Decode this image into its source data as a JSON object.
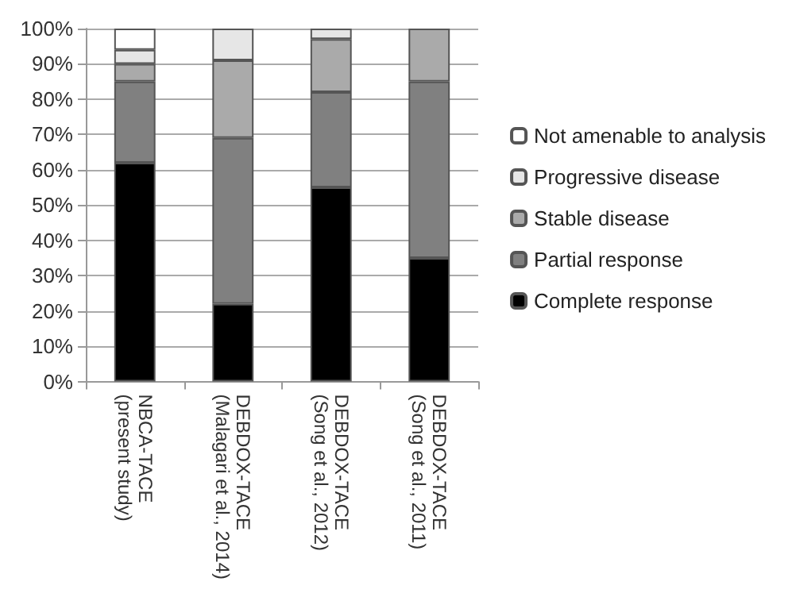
{
  "chart_data": {
    "type": "bar",
    "stacked": true,
    "categories": [
      "NBCA-TACE\n(present study)",
      "DEBDOX-TACE\n(Malagari et al., 2014)",
      "DEBDOX-TACE\n(Song et al., 2012)",
      "DEBDOX-TACE\n(Song et al., 2011)"
    ],
    "series": [
      {
        "name": "Complete response",
        "color": "#000000",
        "values": [
          62,
          22,
          55,
          35
        ]
      },
      {
        "name": "Partial response",
        "color": "#808080",
        "values": [
          23,
          47,
          27,
          50
        ]
      },
      {
        "name": "Stable disease",
        "color": "#aaaaaa",
        "values": [
          5,
          22,
          15,
          15
        ]
      },
      {
        "name": "Progressive disease",
        "color": "#e6e6e6",
        "values": [
          4,
          9,
          3,
          0
        ]
      },
      {
        "name": "Not amenable to analysis",
        "color": "#ffffff",
        "values": [
          6,
          0,
          0,
          0
        ]
      }
    ],
    "ylim": [
      0,
      100
    ],
    "yticks": [
      {
        "value": 0,
        "label": "0%"
      },
      {
        "value": 10,
        "label": "10%"
      },
      {
        "value": 20,
        "label": "20%"
      },
      {
        "value": 30,
        "label": "30%"
      },
      {
        "value": 40,
        "label": "40%"
      },
      {
        "value": 50,
        "label": "50%"
      },
      {
        "value": 60,
        "label": "60%"
      },
      {
        "value": 70,
        "label": "70%"
      },
      {
        "value": 80,
        "label": "80%"
      },
      {
        "value": 90,
        "label": "90%"
      },
      {
        "value": 100,
        "label": "100%"
      }
    ],
    "grid": "y",
    "legend": "right"
  }
}
